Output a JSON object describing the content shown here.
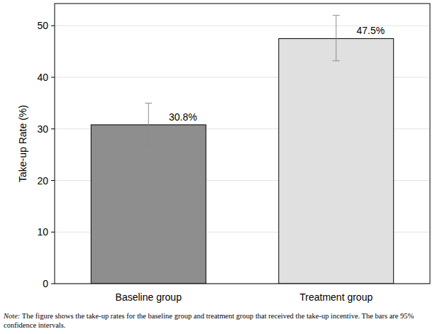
{
  "chart_data": {
    "type": "bar",
    "y_label": "Take-up Rate (%)",
    "categories": [
      "Baseline group",
      "Treatment group"
    ],
    "values": [
      30.8,
      47.5
    ],
    "value_labels": [
      "30.8%",
      "47.5%"
    ],
    "ci_low": [
      26.7,
      43.2
    ],
    "ci_high": [
      35.0,
      52.0
    ],
    "colors": [
      "#8e8e8e",
      "#e0e0e0"
    ],
    "ylim": [
      0,
      54.3
    ],
    "yticks": [
      0,
      10,
      20,
      30,
      40,
      50
    ],
    "grid": true,
    "data_labels": true,
    "note_label": "Note:",
    "note": "The figure shows the take-up rates for the baseline group and treatment group that received the take-up incentive. The bars are 95% confidence intervals."
  }
}
